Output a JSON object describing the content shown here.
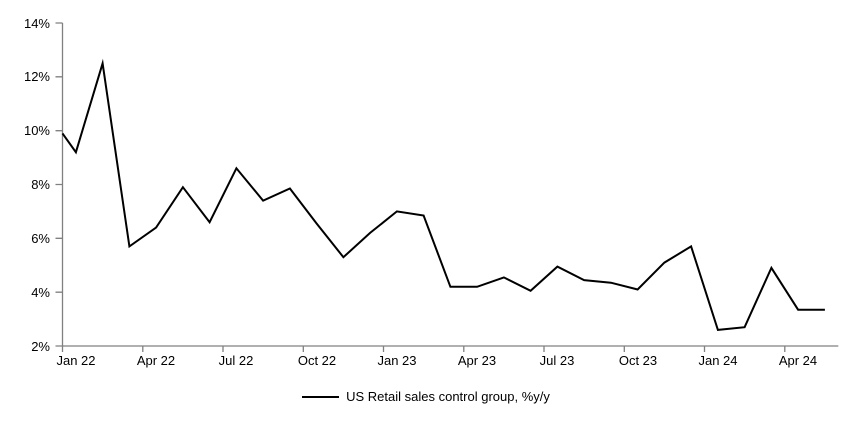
{
  "chart_data": {
    "type": "line",
    "title": "",
    "xlabel": "",
    "ylabel": "",
    "categories": [
      "Jan 22",
      "Feb 22",
      "Mar 22",
      "Apr 22",
      "May 22",
      "Jun 22",
      "Jul 22",
      "Aug 22",
      "Sep 22",
      "Oct 22",
      "Nov 22",
      "Dec 22",
      "Jan 23",
      "Feb 23",
      "Mar 23",
      "Apr 23",
      "May 23",
      "Jun 23",
      "Jul 23",
      "Aug 23",
      "Sep 23",
      "Oct 23",
      "Nov 23",
      "Dec 23",
      "Jan 24",
      "Feb 24",
      "Mar 24",
      "Apr 24",
      "May 24"
    ],
    "series": [
      {
        "name": "US Retail sales control group, %y/y",
        "color": "#000000",
        "values": [
          9.2,
          12.5,
          5.7,
          6.4,
          7.9,
          6.6,
          8.6,
          7.4,
          7.85,
          6.55,
          5.3,
          6.2,
          7.0,
          6.85,
          4.2,
          4.2,
          4.55,
          4.05,
          4.95,
          4.45,
          4.35,
          4.1,
          5.1,
          5.7,
          2.6,
          2.7,
          4.9,
          3.35,
          3.35
        ]
      }
    ],
    "lead_in_value_at_left_edge": 9.9,
    "ylim": [
      2,
      14
    ],
    "y_tick_labels": [
      "2%",
      "4%",
      "6%",
      "8%",
      "10%",
      "12%",
      "14%"
    ],
    "x_tick_labels": [
      "Jan 22",
      "Apr 22",
      "Jul 22",
      "Oct 22",
      "Jan 23",
      "Apr 23",
      "Jul 23",
      "Oct 23",
      "Jan 24",
      "Apr 24"
    ],
    "x_tick_every_n_categories": 3,
    "grid": false,
    "legend_position": "bottom-center",
    "axis_color": "#808080",
    "text_color": "#000000",
    "background": "#ffffff"
  }
}
